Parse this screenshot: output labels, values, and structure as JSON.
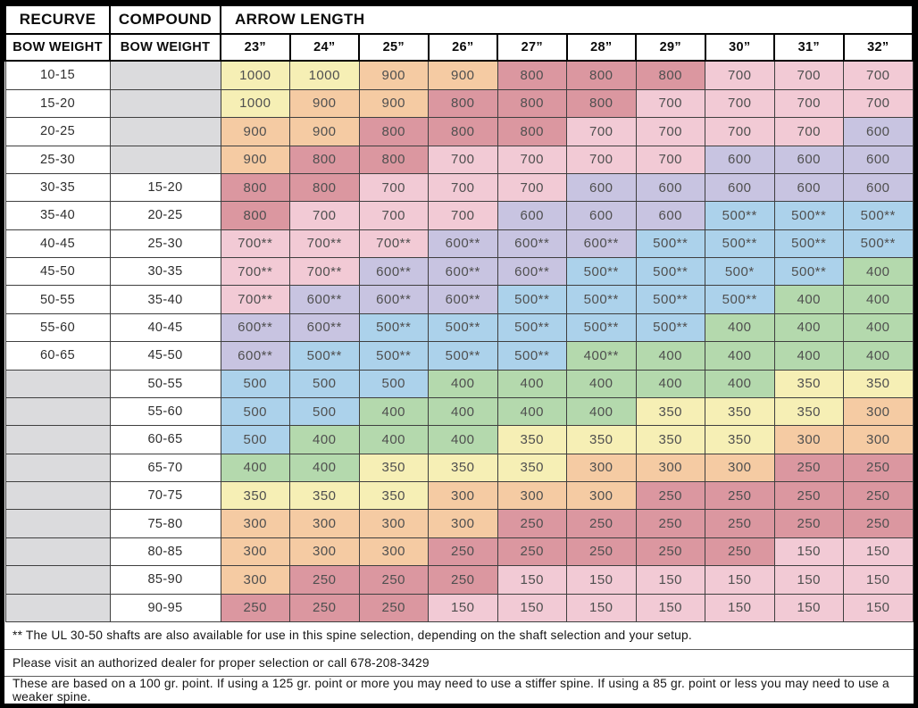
{
  "header": {
    "recurve": "RECURVE",
    "compound": "COMPOUND",
    "arrow_length": "ARROW LENGTH",
    "bow_weight": "BOW WEIGHT",
    "arrow_lengths": [
      "23”",
      "24”",
      "25”",
      "26”",
      "27”",
      "28”",
      "29”",
      "30”",
      "31”",
      "32”"
    ]
  },
  "palette": {
    "1000": "#f6efb5",
    "900": "#f5cba3",
    "800": "#db97a0",
    "700": "#f2cad5",
    "600": "#c8c4e1",
    "500": "#acd2eb",
    "400": "#b4d9ad",
    "350": "#f6efb5",
    "300": "#f5cba3",
    "250": "#db97a0",
    "150": "#f2cad5",
    "empty": "#dbdbdd"
  },
  "chart_data": {
    "type": "table",
    "columns": [
      "RECURVE BOW WEIGHT",
      "COMPOUND BOW WEIGHT",
      "23”",
      "24”",
      "25”",
      "26”",
      "27”",
      "28”",
      "29”",
      "30”",
      "31”",
      "32”"
    ],
    "rows": [
      {
        "recurve": "10-15",
        "compound": "",
        "spines": [
          "1000",
          "1000",
          "900",
          "900",
          "800",
          "800",
          "800",
          "700",
          "700",
          "700"
        ]
      },
      {
        "recurve": "15-20",
        "compound": "",
        "spines": [
          "1000",
          "900",
          "900",
          "800",
          "800",
          "800",
          "700",
          "700",
          "700",
          "700"
        ]
      },
      {
        "recurve": "20-25",
        "compound": "",
        "spines": [
          "900",
          "900",
          "800",
          "800",
          "800",
          "700",
          "700",
          "700",
          "700",
          "600"
        ]
      },
      {
        "recurve": "25-30",
        "compound": "",
        "spines": [
          "900",
          "800",
          "800",
          "700",
          "700",
          "700",
          "700",
          "600",
          "600",
          "600"
        ]
      },
      {
        "recurve": "30-35",
        "compound": "15-20",
        "spines": [
          "800",
          "800",
          "700",
          "700",
          "700",
          "600",
          "600",
          "600",
          "600",
          "600"
        ]
      },
      {
        "recurve": "35-40",
        "compound": "20-25",
        "spines": [
          "800",
          "700",
          "700",
          "700",
          "600",
          "600",
          "600",
          "500**",
          "500**",
          "500**"
        ]
      },
      {
        "recurve": "40-45",
        "compound": "25-30",
        "spines": [
          "700**",
          "700**",
          "700**",
          "600**",
          "600**",
          "600**",
          "500**",
          "500**",
          "500**",
          "500**"
        ]
      },
      {
        "recurve": "45-50",
        "compound": "30-35",
        "spines": [
          "700**",
          "700**",
          "600**",
          "600**",
          "600**",
          "500**",
          "500**",
          "500*",
          "500**",
          "400"
        ]
      },
      {
        "recurve": "50-55",
        "compound": "35-40",
        "spines": [
          "700**",
          "600**",
          "600**",
          "600**",
          "500**",
          "500**",
          "500**",
          "500**",
          "400",
          "400"
        ]
      },
      {
        "recurve": "55-60",
        "compound": "40-45",
        "spines": [
          "600**",
          "600**",
          "500**",
          "500**",
          "500**",
          "500**",
          "500**",
          "400",
          "400",
          "400"
        ]
      },
      {
        "recurve": "60-65",
        "compound": "45-50",
        "spines": [
          "600**",
          "500**",
          "500**",
          "500**",
          "500**",
          "400**",
          "400",
          "400",
          "400",
          "400"
        ]
      },
      {
        "recurve": "",
        "compound": "50-55",
        "spines": [
          "500",
          "500",
          "500",
          "400",
          "400",
          "400",
          "400",
          "400",
          "350",
          "350"
        ]
      },
      {
        "recurve": "",
        "compound": "55-60",
        "spines": [
          "500",
          "500",
          "400",
          "400",
          "400",
          "400",
          "350",
          "350",
          "350",
          "300"
        ]
      },
      {
        "recurve": "",
        "compound": "60-65",
        "spines": [
          "500",
          "400",
          "400",
          "400",
          "350",
          "350",
          "350",
          "350",
          "300",
          "300"
        ]
      },
      {
        "recurve": "",
        "compound": "65-70",
        "spines": [
          "400",
          "400",
          "350",
          "350",
          "350",
          "300",
          "300",
          "300",
          "250",
          "250"
        ]
      },
      {
        "recurve": "",
        "compound": "70-75",
        "spines": [
          "350",
          "350",
          "350",
          "300",
          "300",
          "300",
          "250",
          "250",
          "250",
          "250"
        ]
      },
      {
        "recurve": "",
        "compound": "75-80",
        "spines": [
          "300",
          "300",
          "300",
          "300",
          "250",
          "250",
          "250",
          "250",
          "250",
          "250"
        ]
      },
      {
        "recurve": "",
        "compound": "80-85",
        "spines": [
          "300",
          "300",
          "300",
          "250",
          "250",
          "250",
          "250",
          "250",
          "150",
          "150"
        ]
      },
      {
        "recurve": "",
        "compound": "85-90",
        "spines": [
          "300",
          "250",
          "250",
          "250",
          "150",
          "150",
          "150",
          "150",
          "150",
          "150"
        ]
      },
      {
        "recurve": "",
        "compound": "90-95",
        "spines": [
          "250",
          "250",
          "250",
          "150",
          "150",
          "150",
          "150",
          "150",
          "150",
          "150"
        ]
      }
    ]
  },
  "footnotes": [
    "** The UL 30-50 shafts are also available for use in this spine selection, depending on the shaft selection and your setup.",
    "Please visit an authorized dealer for proper selection or call 678-208-3429",
    "These are based on a 100 gr. point. If using a 125 gr. point or more you may need to use a stiffer spine. If using a 85 gr. point or less you may need to use a weaker spine."
  ]
}
